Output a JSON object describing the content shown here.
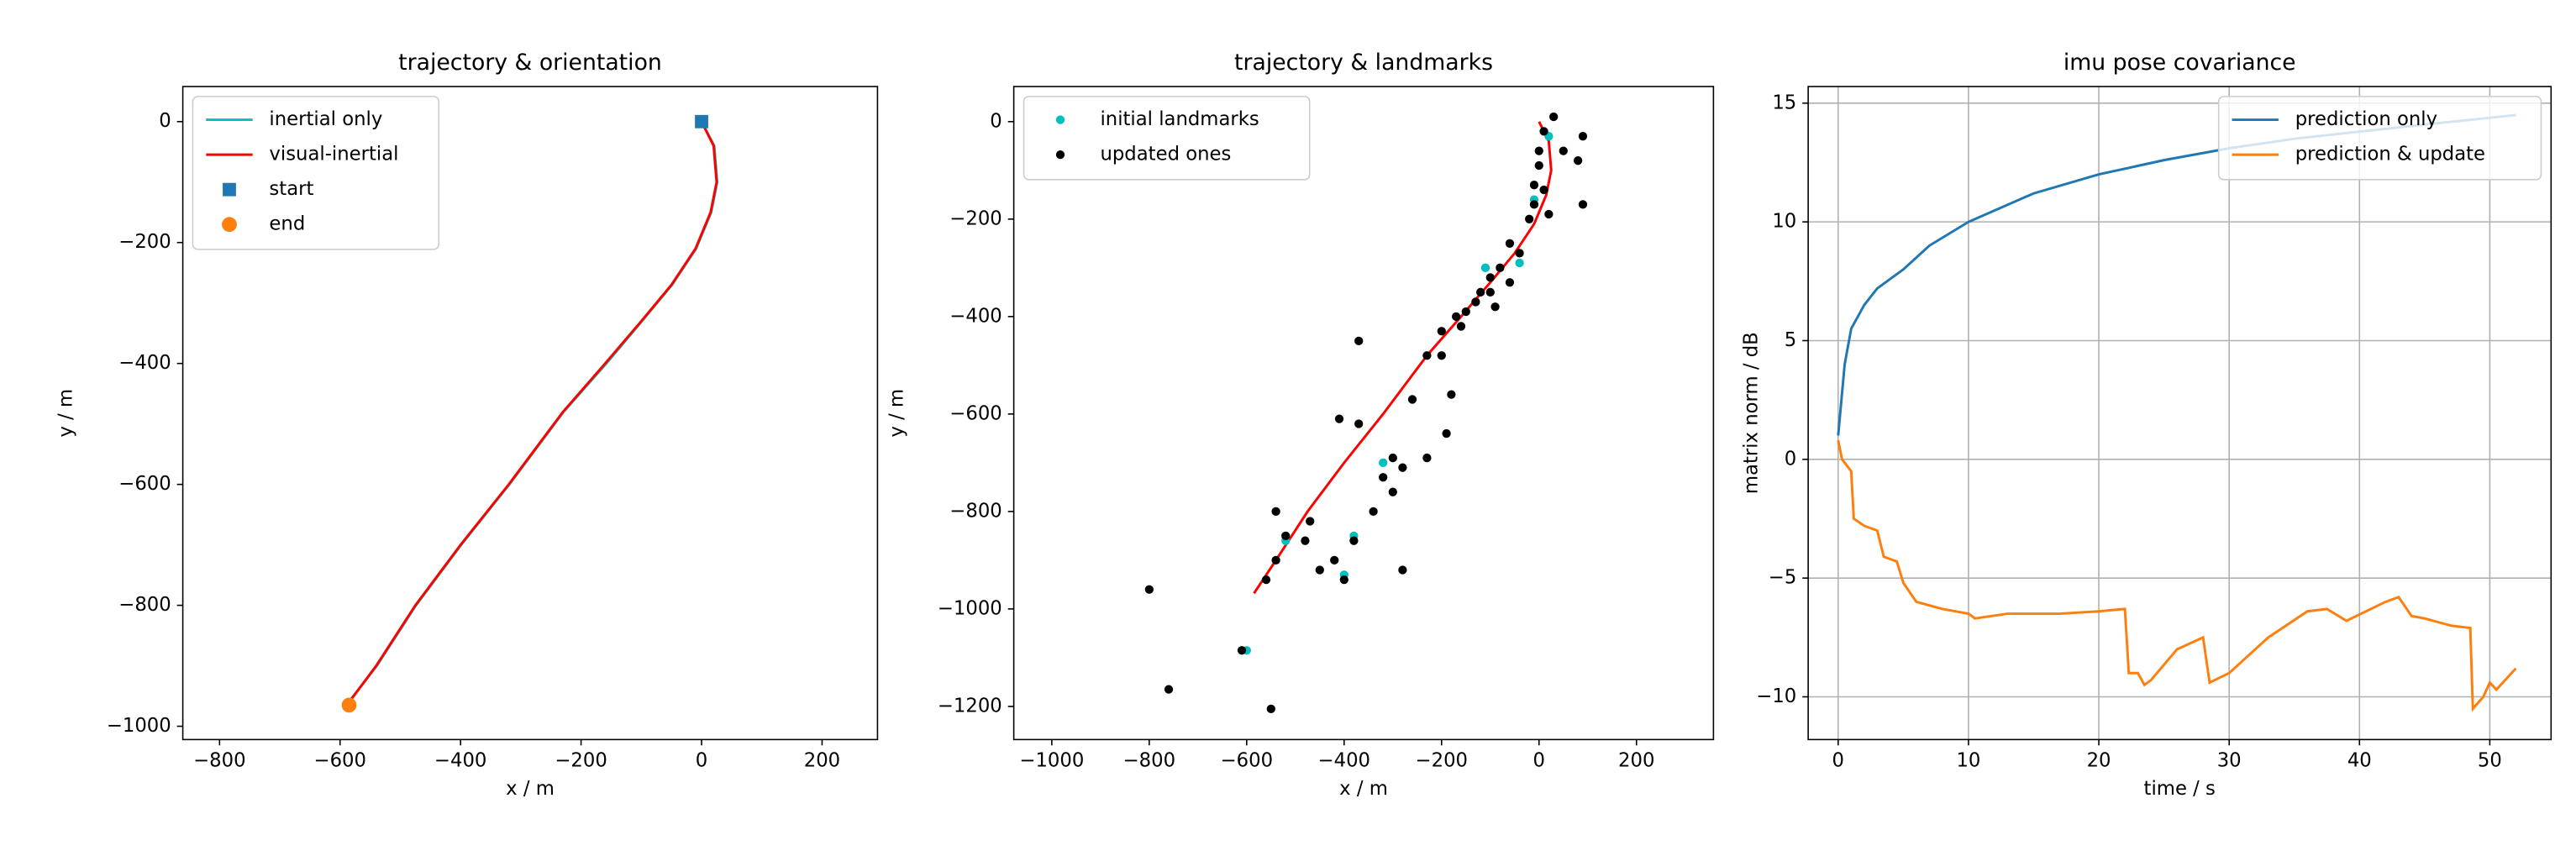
{
  "chart_data": [
    {
      "type": "line",
      "title": "trajectory & orientation",
      "x_label": "x / m",
      "y_label": "y / m",
      "xlim": [
        -861,
        292
      ],
      "ylim": [
        -1022,
        58
      ],
      "xticks": [
        {
          "value": -800,
          "label": "−800"
        },
        {
          "value": -600,
          "label": "−600"
        },
        {
          "value": -400,
          "label": "−400"
        },
        {
          "value": -200,
          "label": "−200"
        },
        0,
        200
      ],
      "yticks": [
        0,
        {
          "value": -200,
          "label": "−200"
        },
        {
          "value": -400,
          "label": "−400"
        },
        {
          "value": -600,
          "label": "−600"
        },
        {
          "value": -800,
          "label": "−800"
        },
        {
          "value": -1000,
          "label": "−1000"
        }
      ],
      "grid": false,
      "legend": "upper left",
      "series": [
        {
          "name": "inertial only",
          "color": "#00bfbf",
          "marker": "line",
          "x": [
            0,
            21,
            26,
            16,
            -9,
            -49,
            -99,
            -158,
            -229,
            -319,
            -399,
            -474,
            -539,
            -592
          ],
          "values": [
            0,
            -40,
            -100,
            -150,
            -210,
            -270,
            -330,
            -400,
            -480,
            -600,
            -700,
            -800,
            -900,
            -968
          ]
        },
        {
          "name": "visual-inertial",
          "color": "#ff0000",
          "marker": "line",
          "x": [
            0,
            20,
            25,
            15,
            -10,
            -50,
            -100,
            -160,
            -230,
            -320,
            -400,
            -475,
            -540,
            -590
          ],
          "values": [
            0,
            -40,
            -100,
            -150,
            -210,
            -270,
            -330,
            -400,
            -480,
            -600,
            -700,
            -800,
            -900,
            -967
          ]
        },
        {
          "name": "start",
          "color": "#1f77b4",
          "marker": "square",
          "x": [
            0
          ],
          "values": [
            0
          ]
        },
        {
          "name": "end",
          "color": "#ff7f0e",
          "marker": "circle",
          "x": [
            -585
          ],
          "values": [
            -965
          ]
        }
      ]
    },
    {
      "type": "scatter",
      "title": "trajectory & landmarks",
      "x_label": "x / m",
      "y_label": "y / m",
      "xlim": [
        -1078,
        358
      ],
      "ylim": [
        -1268,
        72
      ],
      "xticks": [
        {
          "value": -1000,
          "label": "−1000"
        },
        {
          "value": -800,
          "label": "−800"
        },
        {
          "value": -600,
          "label": "−600"
        },
        {
          "value": -400,
          "label": "−400"
        },
        {
          "value": -200,
          "label": "−200"
        },
        0,
        200
      ],
      "yticks": [
        0,
        {
          "value": -200,
          "label": "−200"
        },
        {
          "value": -400,
          "label": "−400"
        },
        {
          "value": -600,
          "label": "−600"
        },
        {
          "value": -800,
          "label": "−800"
        },
        {
          "value": -1000,
          "label": "−1000"
        },
        {
          "value": -1200,
          "label": "−1200"
        }
      ],
      "grid": false,
      "legend": "upper left",
      "series": [
        {
          "color": "#ff0000",
          "marker": "line",
          "x": [
            0,
            20,
            25,
            15,
            -10,
            -50,
            -100,
            -160,
            -230,
            -320,
            -400,
            -475,
            -540,
            -585
          ],
          "values": [
            0,
            -40,
            -100,
            -150,
            -210,
            -270,
            -330,
            -400,
            -480,
            -600,
            -700,
            -800,
            -900,
            -968
          ]
        },
        {
          "name": "initial landmarks",
          "color": "#00bfbf",
          "marker": "dot",
          "x": [
            20,
            -10,
            -40,
            -110,
            -320,
            -380,
            -540,
            -520,
            -600,
            -400
          ],
          "values": [
            -30,
            -160,
            -290,
            -300,
            -700,
            -850,
            -800,
            -860,
            -1085,
            -930
          ]
        },
        {
          "name": "updated ones",
          "color": "#000000",
          "marker": "dot",
          "x": [
            30,
            10,
            90,
            80,
            50,
            0,
            0,
            -10,
            10,
            -10,
            20,
            90,
            -20,
            -40,
            -60,
            -80,
            -100,
            -120,
            -130,
            -90,
            -150,
            -170,
            -200,
            -160,
            -200,
            -230,
            -260,
            -180,
            -190,
            -370,
            -370,
            -410,
            -300,
            -280,
            -320,
            -300,
            -340,
            -280,
            -380,
            -420,
            -400,
            -450,
            -480,
            -520,
            -540,
            -560,
            -470,
            -540,
            -800,
            -760,
            -610,
            -550,
            -230,
            -100,
            -60
          ],
          "values": [
            10,
            -20,
            -30,
            -80,
            -60,
            -60,
            -90,
            -130,
            -140,
            -170,
            -190,
            -170,
            -200,
            -270,
            -250,
            -300,
            -320,
            -350,
            -370,
            -380,
            -390,
            -400,
            -430,
            -420,
            -480,
            -480,
            -570,
            -560,
            -640,
            -450,
            -620,
            -610,
            -690,
            -710,
            -730,
            -760,
            -800,
            -920,
            -860,
            -900,
            -940,
            -920,
            -860,
            -850,
            -900,
            -940,
            -820,
            -800,
            -960,
            -1165,
            -1085,
            -1205,
            -690,
            -350,
            -330
          ]
        }
      ]
    },
    {
      "type": "line",
      "title": "imu pose covariance",
      "x_label": "time / s",
      "y_label": "matrix norm / dB",
      "xlim": [
        -2.3,
        54.7
      ],
      "ylim": [
        -11.8,
        15.7
      ],
      "xticks": [
        0,
        10,
        20,
        30,
        40,
        50
      ],
      "yticks": [
        {
          "value": -10,
          "label": "−10"
        },
        {
          "value": -5,
          "label": "−5"
        },
        0,
        5,
        10,
        15
      ],
      "grid": true,
      "legend": "upper right",
      "series": [
        {
          "name": "prediction only",
          "color": "#1f77b4",
          "marker": "line",
          "x": [
            0,
            0.5,
            1,
            2,
            3,
            5,
            7,
            10,
            15,
            20,
            25,
            30,
            35,
            40,
            45,
            52
          ],
          "values": [
            1,
            4,
            5.5,
            6.5,
            7.2,
            8,
            9,
            10,
            11.2,
            12,
            12.6,
            13.1,
            13.5,
            13.8,
            14.1,
            14.5
          ]
        },
        {
          "name": "prediction & update",
          "color": "#ff7f0e",
          "marker": "line",
          "x": [
            0,
            0.3,
            1,
            1.2,
            2,
            3,
            3.5,
            4.5,
            5,
            6,
            8,
            10,
            10.5,
            13,
            17,
            20,
            22,
            22.3,
            23,
            23.5,
            24,
            26,
            28,
            28.5,
            30,
            33,
            36,
            37.5,
            39,
            42,
            43,
            44,
            45,
            47,
            48.5,
            48.7,
            49.5,
            50,
            50.5,
            52
          ],
          "values": [
            0.8,
            0,
            -0.5,
            -2.5,
            -2.8,
            -3,
            -4.1,
            -4.3,
            -5.2,
            -6,
            -6.3,
            -6.5,
            -6.7,
            -6.5,
            -6.5,
            -6.4,
            -6.3,
            -9,
            -9,
            -9.5,
            -9.3,
            -8,
            -7.5,
            -9.4,
            -9,
            -7.5,
            -6.4,
            -6.3,
            -6.8,
            -6,
            -5.8,
            -6.6,
            -6.7,
            -7,
            -7.1,
            -10.5,
            -10,
            -9.4,
            -9.7,
            -8.8
          ]
        }
      ]
    }
  ]
}
